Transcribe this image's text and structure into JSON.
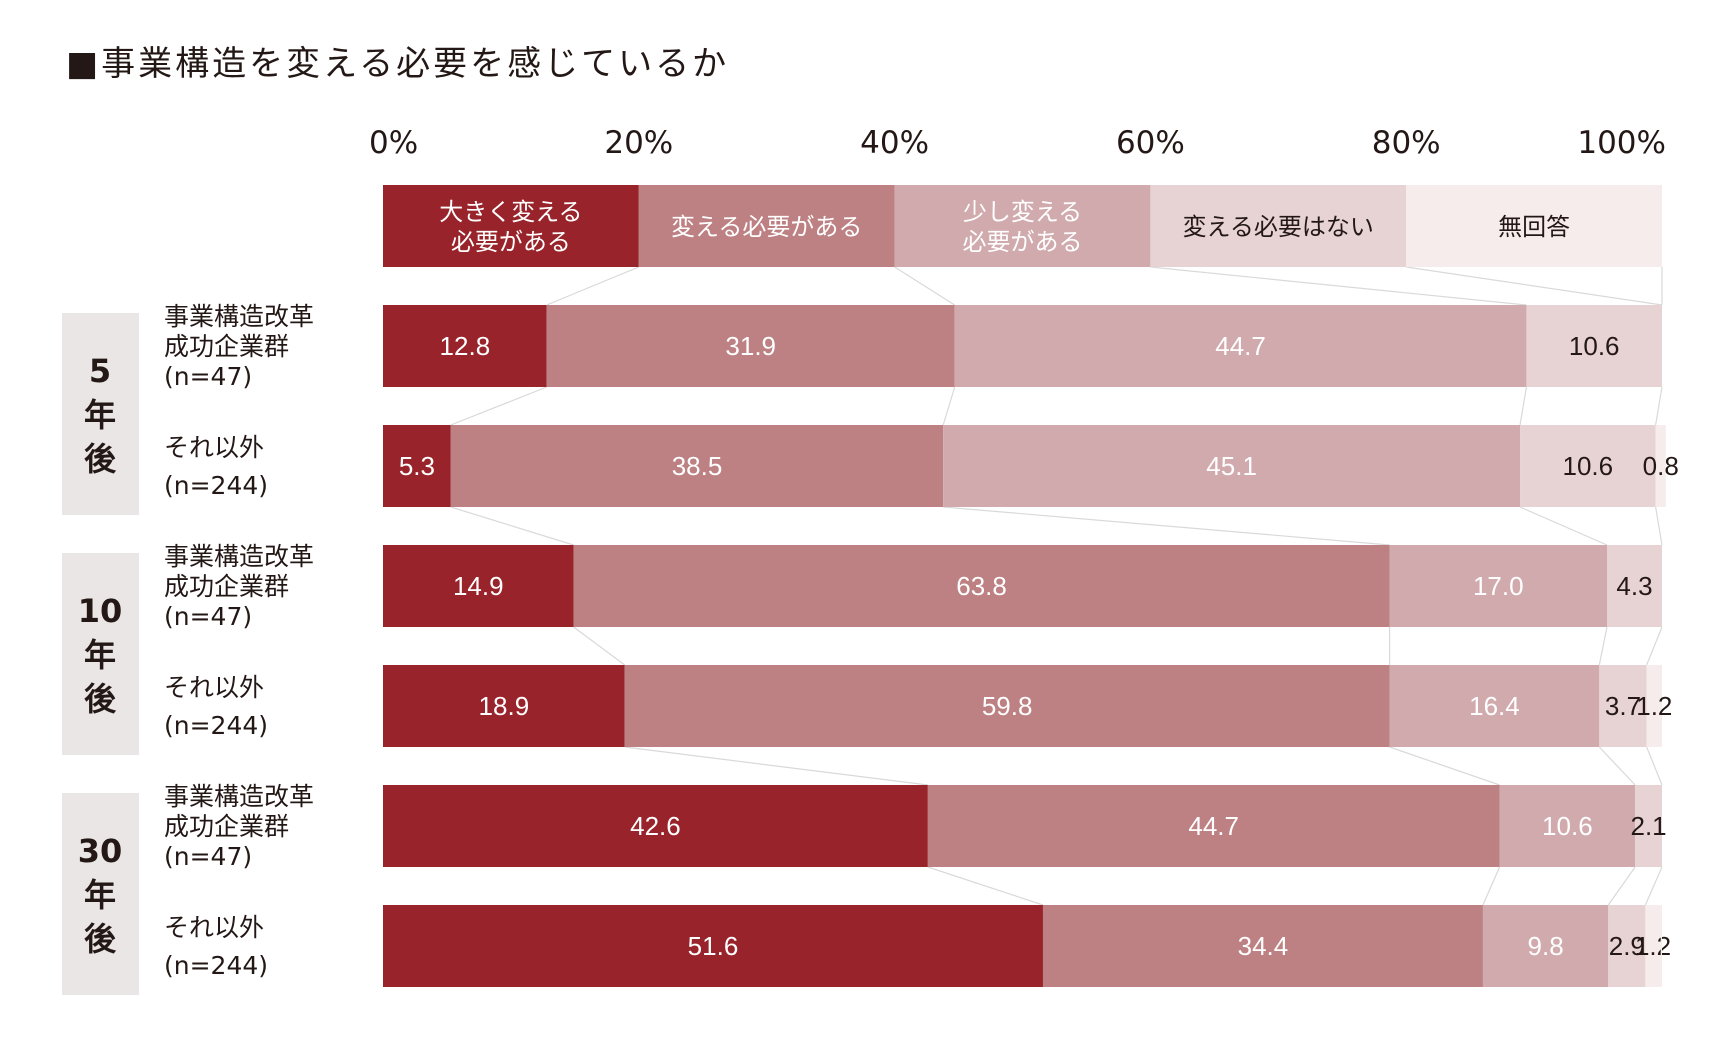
{
  "title": "■事業構造を変える必要を感じているか",
  "chart_data": {
    "type": "bar",
    "stacked": true,
    "orientation": "horizontal",
    "title": "■事業構造を変える必要を感じているか",
    "x_ticks": [
      "0%",
      "20%",
      "40%",
      "60%",
      "80%",
      "100%"
    ],
    "xlim": [
      0,
      100
    ],
    "legend_placement": "top",
    "series": [
      {
        "name": "大きく変える必要がある",
        "name_lines": [
          "大きく変える",
          "必要がある"
        ],
        "color": "#98232a",
        "text_color": "#ffffff"
      },
      {
        "name": "変える必要がある",
        "name_lines": [
          "変える必要がある"
        ],
        "color": "#bd8083",
        "text_color": "#ffffff"
      },
      {
        "name": "少し変える必要がある",
        "name_lines": [
          "少し変える",
          "必要がある"
        ],
        "color": "#d0aaad",
        "text_color": "#ffffff"
      },
      {
        "name": "変える必要はない",
        "name_lines": [
          "変える必要はない"
        ],
        "color": "#e7d3d4",
        "text_color": "#231815"
      },
      {
        "name": "無回答",
        "name_lines": [
          "無回答"
        ],
        "color": "#f7ecec",
        "text_color": "#231815"
      }
    ],
    "groups": [
      {
        "label": "5年後",
        "label_lines": [
          "5",
          "年",
          "後"
        ],
        "rows": [
          {
            "label_lines": [
              "事業構造改革",
              "成功企業群",
              "(n=47)"
            ],
            "values": [
              12.8,
              31.9,
              44.7,
              10.6,
              0
            ],
            "value_labels": [
              "12.8",
              "31.9",
              "44.7",
              "10.6",
              ""
            ]
          },
          {
            "label_lines": [
              "それ以外",
              "(n=244)"
            ],
            "values": [
              5.3,
              38.5,
              45.1,
              10.6,
              0.8
            ],
            "value_labels": [
              "5.3",
              "38.5",
              "45.1",
              "10.6",
              "0.8"
            ]
          }
        ]
      },
      {
        "label": "10年後",
        "label_lines": [
          "10",
          "年",
          "後"
        ],
        "rows": [
          {
            "label_lines": [
              "事業構造改革",
              "成功企業群",
              "(n=47)"
            ],
            "values": [
              14.9,
              63.8,
              17.0,
              4.3,
              0
            ],
            "value_labels": [
              "14.9",
              "63.8",
              "17.0",
              "4.3",
              ""
            ]
          },
          {
            "label_lines": [
              "それ以外",
              "(n=244)"
            ],
            "values": [
              18.9,
              59.8,
              16.4,
              3.7,
              1.2
            ],
            "value_labels": [
              "18.9",
              "59.8",
              "16.4",
              "3.7",
              "1.2"
            ]
          }
        ]
      },
      {
        "label": "30年後",
        "label_lines": [
          "30",
          "年",
          "後"
        ],
        "rows": [
          {
            "label_lines": [
              "事業構造改革",
              "成功企業群",
              "(n=47)"
            ],
            "values": [
              42.6,
              44.7,
              10.6,
              2.1,
              0
            ],
            "value_labels": [
              "42.6",
              "44.7",
              "10.6",
              "2.1",
              ""
            ]
          },
          {
            "label_lines": [
              "それ以外",
              "(n=244)"
            ],
            "values": [
              51.6,
              34.4,
              9.8,
              2.9,
              1.2
            ],
            "value_labels": [
              "51.6",
              "34.4",
              "9.8",
              "2.9",
              "1.2"
            ]
          }
        ]
      }
    ]
  }
}
